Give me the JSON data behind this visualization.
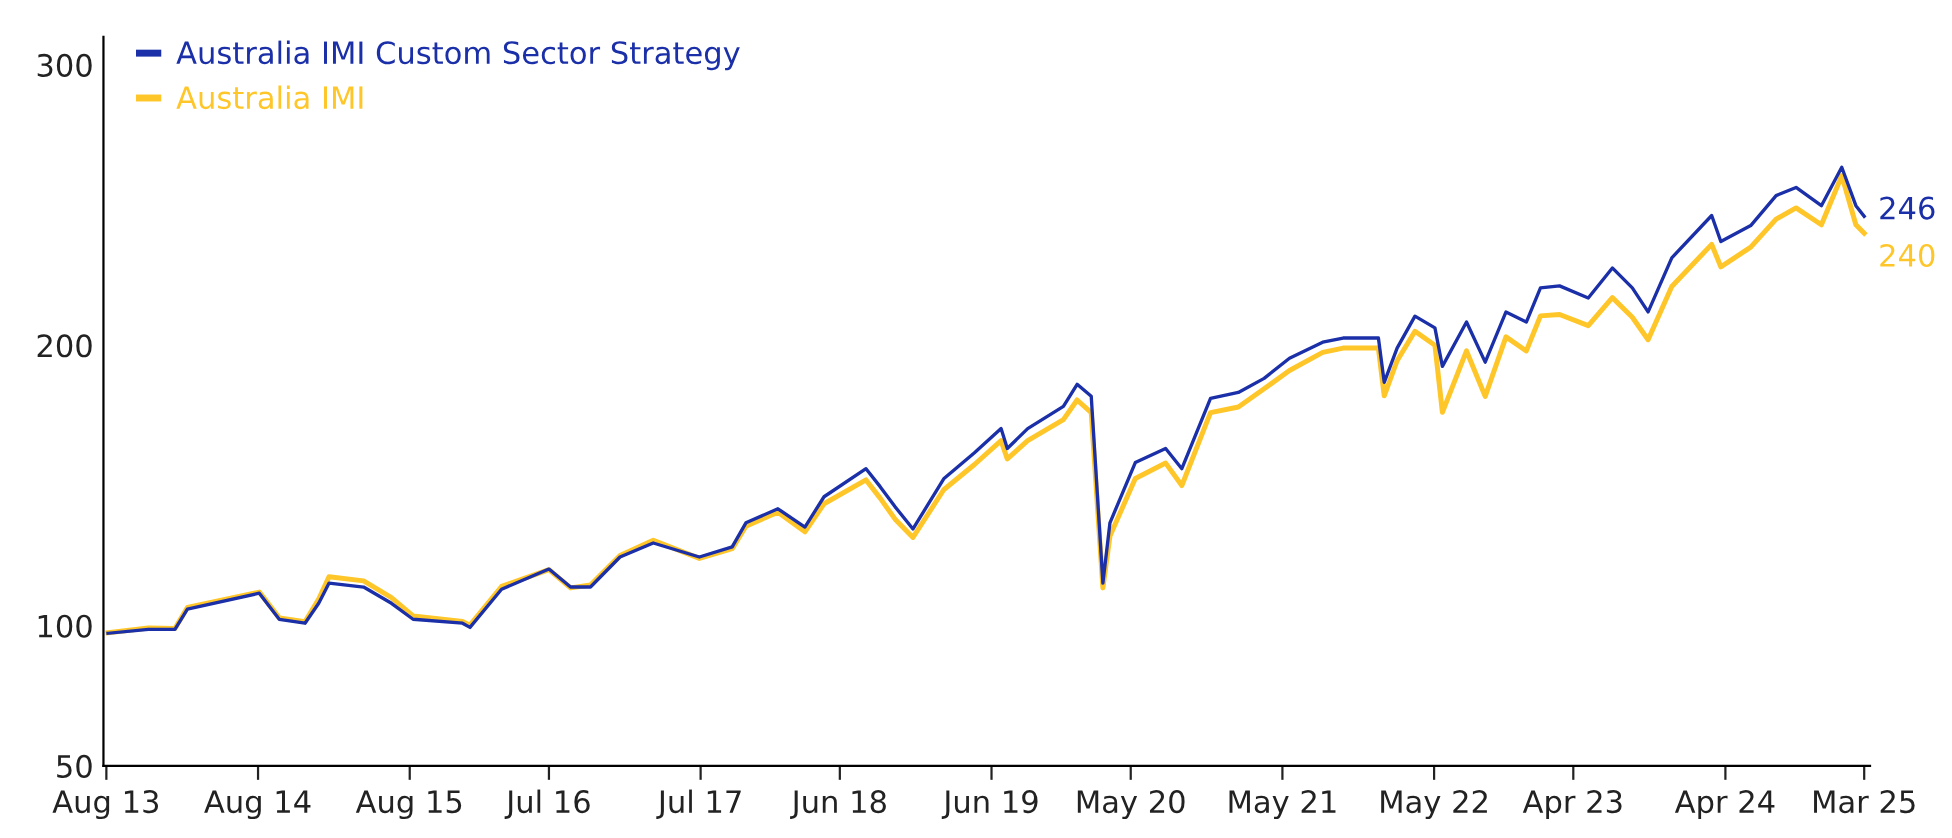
{
  "chart_data": {
    "type": "line",
    "x": [
      "2013-08-05",
      "2013-11-10",
      "2014-01-13",
      "2014-02-12",
      "2014-08-04",
      "2014-09-21",
      "2014-11-22",
      "2014-12-25",
      "2015-01-19",
      "2015-04-12",
      "2015-06-18",
      "2015-08-09",
      "2015-12-06",
      "2015-12-24",
      "2016-03-09",
      "2016-07-01",
      "2016-08-22",
      "2016-10-09",
      "2016-12-19",
      "2017-03-09",
      "2017-06-28",
      "2017-09-15",
      "2017-10-18",
      "2018-01-03",
      "2018-03-09",
      "2018-04-24",
      "2018-08-03",
      "2018-09-06",
      "2018-10-12",
      "2018-11-24",
      "2019-02-06",
      "2019-04-21",
      "2019-06-24",
      "2019-07-09",
      "2019-08-27",
      "2019-11-21",
      "2019-12-24",
      "2020-01-27",
      "2020-02-24",
      "2020-03-12",
      "2020-05-12",
      "2020-07-24",
      "2020-09-01",
      "2020-11-09",
      "2021-01-15",
      "2021-03-18",
      "2021-05-18",
      "2021-08-06",
      "2021-09-24",
      "2021-12-18",
      "2022-01-01",
      "2022-02-01",
      "2022-03-16",
      "2022-05-03",
      "2022-05-21",
      "2022-07-18",
      "2022-09-01",
      "2022-10-21",
      "2022-12-09",
      "2023-01-12",
      "2023-02-27",
      "2023-05-07",
      "2023-07-04",
      "2023-08-21",
      "2023-09-28",
      "2023-11-24",
      "2024-02-28",
      "2024-03-21",
      "2024-06-01",
      "2024-08-01",
      "2024-09-18",
      "2024-11-18",
      "2025-01-06",
      "2025-02-09",
      "2025-03-01"
    ],
    "series": [
      {
        "name": "Australia IMI Custom Sector Strategy",
        "color": "#1a2fa8",
        "values": [
          97.3,
          98.7,
          98.7,
          105.9,
          111.6,
          102.3,
          100.9,
          108,
          115.2,
          113.8,
          108,
          102.3,
          100.9,
          99.4,
          113,
          120.2,
          113.8,
          113.8,
          124.5,
          129.5,
          124.5,
          128.1,
          136.7,
          141.7,
          135.2,
          146,
          156,
          149.6,
          142.4,
          134.5,
          152.4,
          161.7,
          170.3,
          163.2,
          170.3,
          178.2,
          186.1,
          181.8,
          115.2,
          136.7,
          158.2,
          163.2,
          156,
          181.1,
          183.2,
          188.2,
          195.4,
          201.1,
          202.6,
          202.6,
          186.8,
          199,
          210.4,
          206.2,
          192.5,
          208.3,
          194,
          211.9,
          208.3,
          220.5,
          221.2,
          216.9,
          227.6,
          220.5,
          211.9,
          231.2,
          246.3,
          237,
          242.7,
          253.4,
          256.3,
          249.8,
          263.5,
          249.8,
          246
        ]
      },
      {
        "name": "Australia IMI",
        "color": "#ffc629",
        "values": [
          97.5,
          99.2,
          99.0,
          106.5,
          112.0,
          102.8,
          101.4,
          109.5,
          117.5,
          116.0,
          110.0,
          103.5,
          101.5,
          100.2,
          114.0,
          120.0,
          113.5,
          114.5,
          125.0,
          130.5,
          124.0,
          127.5,
          135.5,
          140.5,
          133.5,
          143.5,
          152.0,
          145.5,
          138.0,
          131.5,
          148.5,
          157.5,
          166.0,
          159.5,
          166.0,
          173.5,
          180.5,
          176.0,
          113.5,
          132.0,
          152.5,
          158.0,
          150.0,
          176.0,
          178.0,
          184.5,
          191.0,
          197.5,
          199.0,
          199.0,
          182.0,
          194.5,
          205.0,
          200.0,
          176.1,
          198.0,
          181.8,
          203.0,
          198.0,
          210.5,
          211.0,
          207.0,
          217.0,
          210.0,
          202.0,
          221.0,
          236.0,
          228.0,
          235.0,
          245.0,
          249.0,
          243.0,
          260.5,
          243.0,
          240
        ]
      }
    ],
    "xlim": [
      "2013-07-25",
      "2025-03-15"
    ],
    "xticks": [
      {
        "value": "2013-08",
        "label": "Aug 13"
      },
      {
        "value": "2014-08",
        "label": "Aug 14"
      },
      {
        "value": "2015-08",
        "label": "Aug 15"
      },
      {
        "value": "2016-07",
        "label": "Jul 16"
      },
      {
        "value": "2017-07",
        "label": "Jul 17"
      },
      {
        "value": "2018-06",
        "label": "Jun 18"
      },
      {
        "value": "2019-06",
        "label": "Jun 19"
      },
      {
        "value": "2020-05",
        "label": "May 20"
      },
      {
        "value": "2021-05",
        "label": "May 21"
      },
      {
        "value": "2022-05",
        "label": "May 22"
      },
      {
        "value": "2023-04",
        "label": "Apr 23"
      },
      {
        "value": "2024-04",
        "label": "Apr 24"
      },
      {
        "value": "2025-03",
        "label": "Mar 25"
      }
    ],
    "ylim": [
      50,
      310
    ],
    "yticks": [
      50,
      100,
      200,
      300
    ],
    "annotations": [
      {
        "text": "246",
        "x": "2025-03-01",
        "y": 246
      },
      {
        "text": "240",
        "x": "2025-03-01",
        "y": 240
      }
    ],
    "legend": "top left",
    "grid": false,
    "marker": "none",
    "line_style": "solid"
  }
}
